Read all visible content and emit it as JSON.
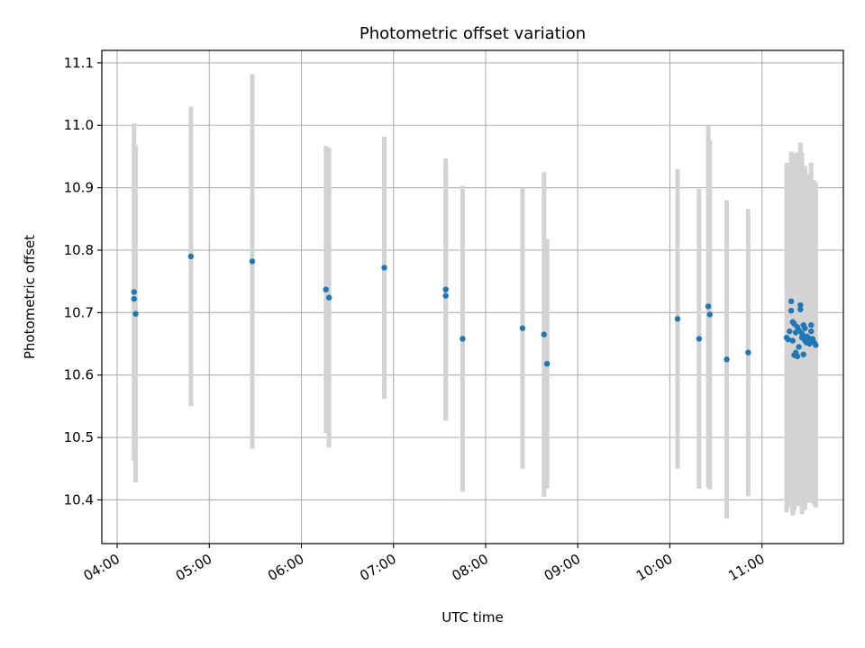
{
  "chart_data": {
    "type": "scatter",
    "title": "Photometric offset variation",
    "xlabel": "UTC time",
    "ylabel": "Photometric offset",
    "x_is_time": true,
    "xlim": [
      "03:50",
      "11:53"
    ],
    "ylim": [
      10.33,
      11.12
    ],
    "x_ticks": [
      "04:00",
      "05:00",
      "06:00",
      "07:00",
      "08:00",
      "09:00",
      "10:00",
      "11:00"
    ],
    "y_ticks": [
      10.4,
      10.5,
      10.6,
      10.7,
      10.8,
      10.9,
      11.0,
      11.1
    ],
    "y_tick_labels": [
      "10.4",
      "10.5",
      "10.6",
      "10.7",
      "10.8",
      "10.9",
      "11.0",
      "11.1"
    ],
    "grid": true,
    "colors": {
      "points": "#1f77b4",
      "errorbars": "#d3d3d3",
      "grid": "#b0b0b0"
    },
    "series": [
      {
        "x": [
          "04:11",
          "04:11",
          "04:12",
          "04:48",
          "05:28",
          "06:16",
          "06:18",
          "06:54",
          "07:34",
          "07:34",
          "07:45",
          "08:24",
          "08:38",
          "08:40",
          "10:05",
          "10:19",
          "10:25",
          "10:26",
          "10:37",
          "10:51",
          "11:16",
          "11:17",
          "11:18",
          "11:19",
          "11:19",
          "11:20",
          "11:20",
          "11:21",
          "11:21",
          "11:22",
          "11:22",
          "11:23",
          "11:23",
          "11:24",
          "11:24",
          "11:25",
          "11:25",
          "11:26",
          "11:26",
          "11:27",
          "11:27",
          "11:28",
          "11:28",
          "11:29",
          "11:29",
          "11:30",
          "11:30",
          "11:31",
          "11:31",
          "11:32",
          "11:32",
          "11:33",
          "11:34",
          "11:35"
        ],
        "y": [
          10.733,
          10.722,
          10.698,
          10.79,
          10.782,
          10.737,
          10.724,
          10.772,
          10.737,
          10.727,
          10.658,
          10.675,
          10.665,
          10.618,
          10.69,
          10.658,
          10.71,
          10.697,
          10.625,
          10.636,
          10.66,
          10.657,
          10.67,
          10.703,
          10.718,
          10.655,
          10.685,
          10.682,
          10.632,
          10.636,
          10.668,
          10.677,
          10.63,
          10.672,
          10.645,
          10.705,
          10.712,
          10.66,
          10.667,
          10.68,
          10.633,
          10.655,
          10.675,
          10.662,
          10.652,
          10.66,
          10.657,
          10.655,
          10.65,
          10.68,
          10.67,
          10.658,
          10.652,
          10.648
        ],
        "yerr": [
          0.27,
          0.24,
          0.27,
          0.24,
          0.3,
          0.23,
          0.24,
          0.21,
          0.21,
          0.2,
          0.245,
          0.225,
          0.26,
          0.2,
          0.24,
          0.24,
          0.29,
          0.28,
          0.255,
          0.23,
          0.28,
          0.27,
          0.25,
          0.23,
          0.24,
          0.28,
          0.27,
          0.26,
          0.25,
          0.22,
          0.26,
          0.28,
          0.24,
          0.27,
          0.25,
          0.24,
          0.26,
          0.25,
          0.29,
          0.25,
          0.25,
          0.27,
          0.26,
          0.26,
          0.25,
          0.26,
          0.25,
          0.26,
          0.25,
          0.24,
          0.27,
          0.25,
          0.26,
          0.26
        ]
      }
    ]
  }
}
